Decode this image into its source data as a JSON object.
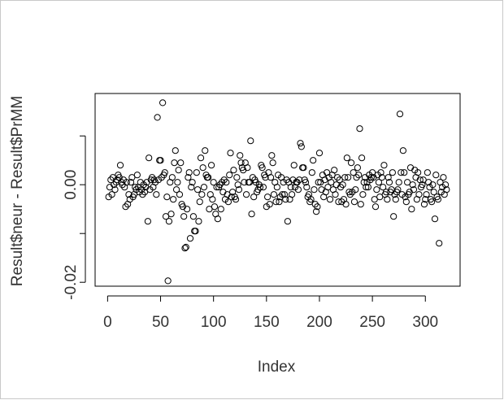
{
  "chart_data": {
    "type": "scatter",
    "xlabel": "Index",
    "ylabel": "Result$neur - Result$PrMM",
    "color": "#000000",
    "xlim": [
      -11.8,
      332.8
    ],
    "xticks": [
      0,
      50,
      100,
      150,
      200,
      250,
      300
    ],
    "ylim": [
      -0.0208,
      0.0187
    ],
    "yticks": [
      {
        "value": -0.02,
        "label": "-0.02"
      },
      {
        "value": -0.01,
        "label": null
      },
      {
        "value": 0,
        "label": "0.00"
      },
      {
        "value": 0.01,
        "label": null
      }
    ],
    "values": [
      -0.0025,
      -0.0005,
      0.001,
      -0.002,
      0.0015,
      0,
      -0.001,
      0.0005,
      0.001,
      0.002,
      0.0015,
      0.004,
      0.0005,
      0,
      0.001,
      -0.0005,
      -0.0045,
      0.0005,
      -0.004,
      -0.002,
      -0.003,
      0.0005,
      0.0015,
      -0.0025,
      -0.002,
      -0.0005,
      -0.001,
      0.002,
      -0.0005,
      -0.0015,
      0.0005,
      -0.001,
      -0.002,
      0,
      -0.0015,
      -0.0005,
      0.0005,
      -0.0075,
      0.0055,
      -0.001,
      0.001,
      0.0015,
      -0.0005,
      0.001,
      0.0005,
      -0.002,
      0.0138,
      0.001,
      0.005,
      0.005,
      0.0015,
      0.0168,
      0.002,
      0.0025,
      -0.0065,
      -0.0025,
      -0.0197,
      -0.0075,
      0.0005,
      -0.006,
      0.0015,
      -0.003,
      0.0045,
      0.007,
      -0.001,
      0.0005,
      0.003,
      -0.002,
      0.0045,
      -0.004,
      -0.0045,
      -0.0065,
      -0.013,
      -0.0128,
      -0.005,
      0.0015,
      0.0025,
      -0.011,
      -0.0005,
      0.0005,
      -0.0065,
      -0.0095,
      -0.0095,
      0.0025,
      -0.001,
      -0.0075,
      -0.0035,
      0.0055,
      -0.002,
      0.0035,
      -0.0005,
      0.007,
      0.002,
      0.0015,
      0.0015,
      -0.005,
      -0.002,
      0.004,
      -0.003,
      0.0005,
      -0.0045,
      -0.006,
      -0.0005,
      -0.007,
      -0.0005,
      0,
      -0.005,
      0.0005,
      -0.0015,
      0.001,
      -0.003,
      0.0005,
      -0.002,
      -0.0035,
      0.002,
      0.0065,
      -0.0025,
      -0.0015,
      0.003,
      -0.0025,
      -0.003,
      0.0015,
      0,
      -0.001,
      0.006,
      0.0045,
      0.0035,
      0.003,
      0.0005,
      0.0045,
      -0.002,
      0.0035,
      0.0005,
      0.0005,
      0.009,
      -0.006,
      0.0015,
      -0.0025,
      0.001,
      0.0005,
      -0.0015,
      -0.001,
      0,
      -0.0005,
      0.004,
      0.0035,
      -0.0005,
      0.002,
      0.0015,
      -0.0045,
      -0.0025,
      0.0025,
      -0.004,
      0.0015,
      0.006,
      0.0045,
      -0.002,
      0.0005,
      -0.0035,
      -0.0005,
      0.002,
      -0.0035,
      -0.0025,
      0.0015,
      -0.002,
      0.0005,
      -0.002,
      -0.003,
      0.001,
      -0.0075,
      0.0005,
      -0.003,
      -0.0005,
      -0.002,
      0.001,
      0.004,
      -0.0005,
      0.0005,
      0.0005,
      -0.001,
      0.001,
      0.0085,
      0.0078,
      0.0035,
      0.0035,
      0.001,
      0.0005,
      -0.0005,
      -0.0025,
      -0.002,
      -0.0035,
      -0.003,
      0.0025,
      0.005,
      -0.001,
      -0.004,
      -0.0055,
      -0.0045,
      0.0005,
      0.0065,
      0.0005,
      -0.001,
      0.002,
      -0.0025,
      0.001,
      -0.0015,
      0.0025,
      -0.0005,
      0.0015,
      -0.003,
      0.0005,
      0.002,
      -0.001,
      0.003,
      -0.002,
      0,
      0.0015,
      -0.0035,
      0.001,
      -0.0005,
      -0.0035,
      0,
      -0.003,
      0.0015,
      -0.004,
      0.0055,
      0.0015,
      -0.0015,
      -0.002,
      0.0045,
      -0.0015,
      0.0025,
      -0.0035,
      -0.001,
      0.0015,
      0.0035,
      0.002,
      0.0115,
      -0.004,
      0.0055,
      -0.002,
      0.0005,
      0.0015,
      -0.0005,
      0.0005,
      -0.0005,
      0.002,
      0.001,
      0.0015,
      0.0025,
      0.0015,
      -0.003,
      -0.0045,
      -0.001,
      0.002,
      0.0005,
      -0.0025,
      0.0025,
      0.0015,
      -0.0005,
      0.004,
      -0.002,
      -0.0015,
      -0.003,
      0.0015,
      0.0005,
      -0.0015,
      -0.001,
      0.0025,
      -0.0065,
      -0.002,
      -0.003,
      -0.0015,
      -0.001,
      0.0005,
      0.0145,
      0.0025,
      -0.002,
      0.007,
      0.0025,
      -0.0025,
      -0.0035,
      0.0005,
      -0.002,
      -0.0015,
      0.0035,
      -0.005,
      0,
      -0.001,
      0.003,
      0.0015,
      -0.003,
      0.0025,
      -0.002,
      0.001,
      -0.0005,
      0,
      0.001,
      -0.004,
      -0.003,
      -0.002,
      0.0025,
      0.0005,
      -0.0005,
      -0.003,
      -0.0035,
      0,
      -0.0015,
      -0.007,
      0.002,
      -0.0025,
      -0.003,
      -0.012,
      0.0005,
      -0.0015,
      -0.0005,
      0.0015,
      -0.002,
      0,
      -0.001
    ]
  }
}
